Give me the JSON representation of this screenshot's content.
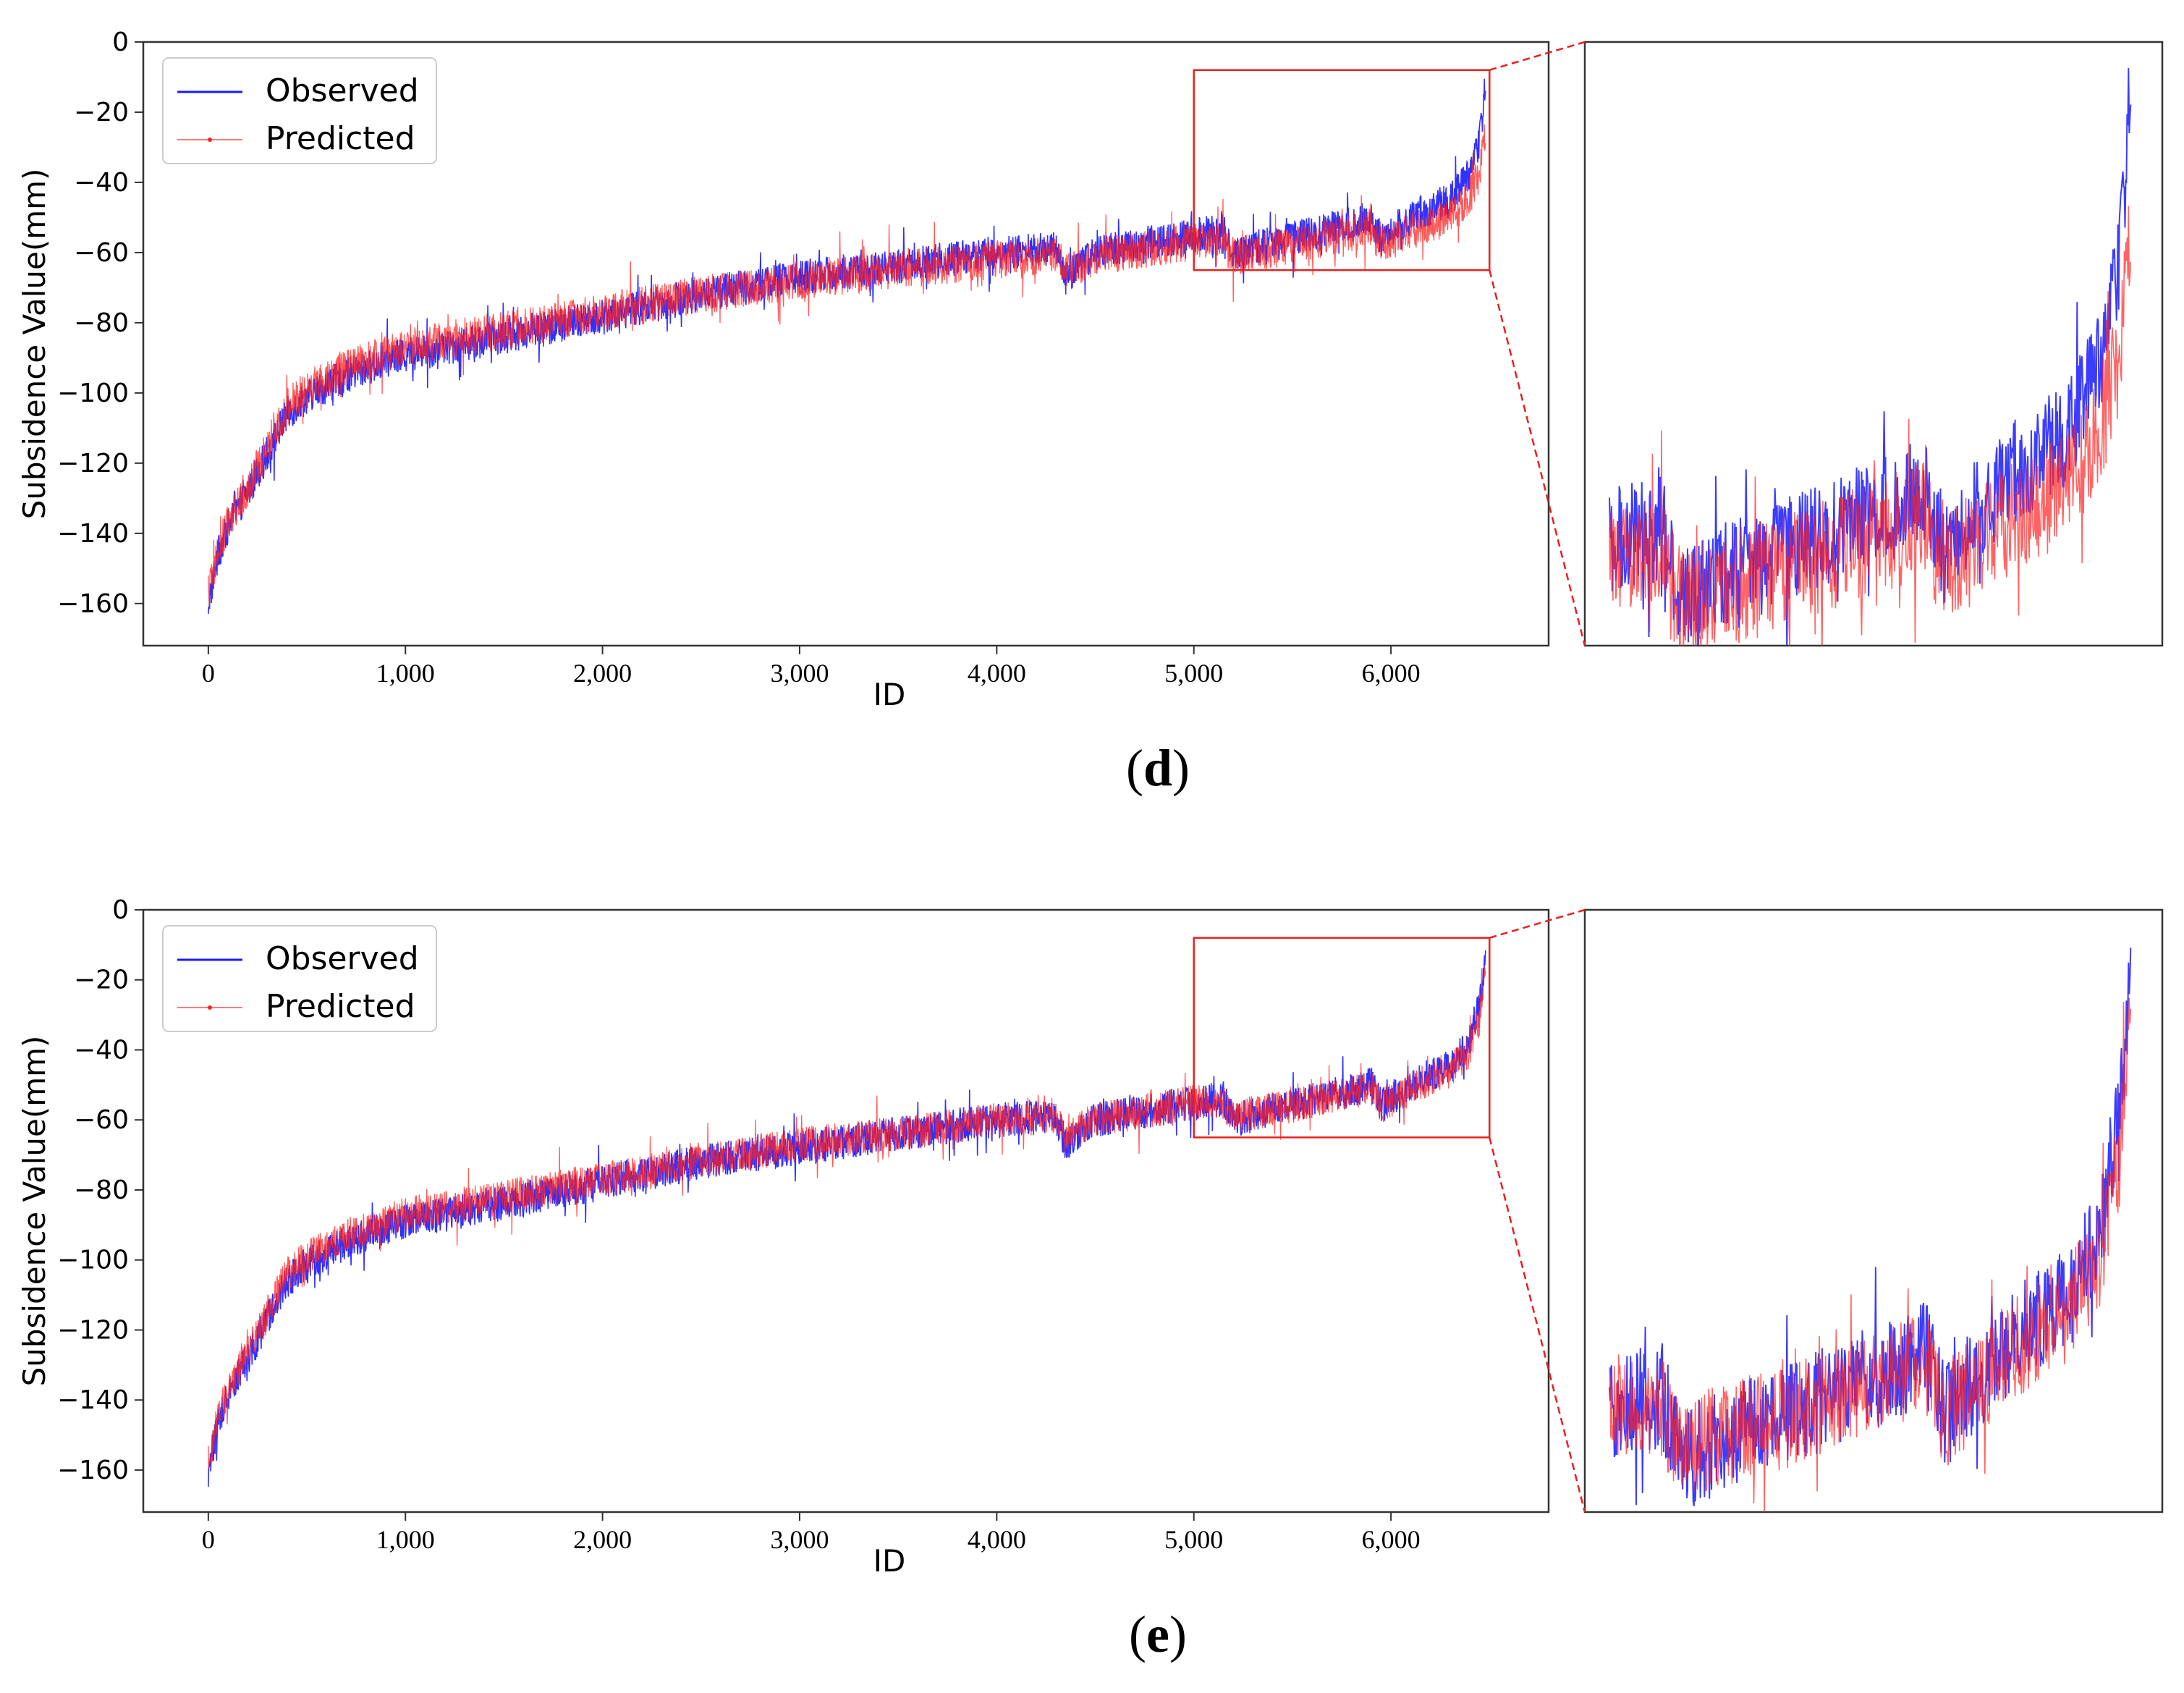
{
  "panels": [
    {
      "caption": "(d)",
      "caption_letter": "d",
      "legend": {
        "observed": "Observed",
        "predicted": "Predicted"
      }
    },
    {
      "caption": "(e)",
      "caption_letter": "e",
      "legend": {
        "observed": "Observed",
        "predicted": "Predicted"
      }
    }
  ],
  "colors": {
    "observed": "#1a1aff",
    "predicted": "#ff2222",
    "zoom_box": "#e8201f",
    "frame": "#333333"
  },
  "chart_data": [
    {
      "type": "line",
      "panel": "d",
      "xlabel": "ID",
      "ylabel": "Subsidence Value(mm)",
      "xlim": [
        -330,
        6800
      ],
      "ylim": [
        -172,
        0
      ],
      "xticks": [
        0,
        1000,
        2000,
        3000,
        4000,
        5000,
        6000
      ],
      "xtick_labels": [
        "0",
        "1,000",
        "2,000",
        "3,000",
        "4,000",
        "5,000",
        "6,000"
      ],
      "yticks": [
        0,
        -20,
        -40,
        -60,
        -80,
        -100,
        -120,
        -140,
        -160
      ],
      "ytick_labels": [
        "0",
        "−20",
        "−40",
        "−60",
        "−80",
        "−100",
        "−120",
        "−140",
        "−160"
      ],
      "zoom_region": {
        "x": [
          5000,
          6500
        ],
        "y": [
          -65,
          -8
        ]
      },
      "trend_x": [
        0,
        50,
        100,
        200,
        300,
        400,
        500,
        700,
        1000,
        1500,
        2000,
        2500,
        3000,
        3500,
        4000,
        4300,
        4350,
        4500,
        5000,
        5150,
        5200,
        5500,
        5900,
        5950,
        6100,
        6300,
        6400,
        6450,
        6480
      ],
      "series": [
        {
          "name": "Observed",
          "trend_y": [
            -160,
            -146,
            -138,
            -128,
            -117,
            -106,
            -101,
            -95,
            -89,
            -84,
            -78,
            -72,
            -67,
            -64,
            -60,
            -59,
            -67,
            -60,
            -55,
            -54,
            -60,
            -56,
            -50,
            -56,
            -50,
            -45,
            -38,
            -28,
            -12
          ],
          "noise": 5
        },
        {
          "name": "Predicted",
          "trend_y": [
            -158,
            -145,
            -137,
            -127,
            -115,
            -104,
            -99,
            -93,
            -87,
            -82,
            -77,
            -72,
            -68,
            -65,
            -62,
            -61,
            -66,
            -61,
            -57,
            -57,
            -61,
            -58,
            -53,
            -58,
            -54,
            -50,
            -44,
            -37,
            -24
          ],
          "noise": 5.5
        }
      ]
    },
    {
      "type": "line",
      "panel": "e",
      "xlabel": "ID",
      "ylabel": "Subsidence Value(mm)",
      "xlim": [
        -330,
        6800
      ],
      "ylim": [
        -172,
        0
      ],
      "xticks": [
        0,
        1000,
        2000,
        3000,
        4000,
        5000,
        6000
      ],
      "xtick_labels": [
        "0",
        "1,000",
        "2,000",
        "3,000",
        "4,000",
        "5,000",
        "6,000"
      ],
      "yticks": [
        0,
        -20,
        -40,
        -60,
        -80,
        -100,
        -120,
        -140,
        -160
      ],
      "ytick_labels": [
        "0",
        "−20",
        "−40",
        "−60",
        "−80",
        "−100",
        "−120",
        "−140",
        "−160"
      ],
      "zoom_region": {
        "x": [
          5000,
          6500
        ],
        "y": [
          -65,
          -8
        ]
      },
      "trend_x": [
        0,
        50,
        100,
        200,
        300,
        400,
        500,
        700,
        1000,
        1500,
        2000,
        2500,
        3000,
        3500,
        4000,
        4300,
        4350,
        4500,
        5000,
        5150,
        5200,
        5500,
        5900,
        5950,
        6100,
        6300,
        6400,
        6450,
        6480
      ],
      "series": [
        {
          "name": "Observed",
          "trend_y": [
            -160,
            -146,
            -138,
            -128,
            -117,
            -106,
            -101,
            -95,
            -89,
            -84,
            -78,
            -72,
            -68,
            -64,
            -60,
            -59,
            -67,
            -60,
            -55,
            -54,
            -60,
            -56,
            -50,
            -56,
            -50,
            -45,
            -38,
            -28,
            -12
          ],
          "noise": 5
        },
        {
          "name": "Predicted",
          "trend_y": [
            -158,
            -145,
            -137,
            -127,
            -115,
            -104,
            -99,
            -93,
            -87,
            -82,
            -77,
            -72,
            -67,
            -64,
            -60,
            -59,
            -65,
            -60,
            -55,
            -55,
            -59,
            -56,
            -51,
            -56,
            -51,
            -46,
            -40,
            -31,
            -15
          ],
          "noise": 5
        }
      ]
    }
  ]
}
